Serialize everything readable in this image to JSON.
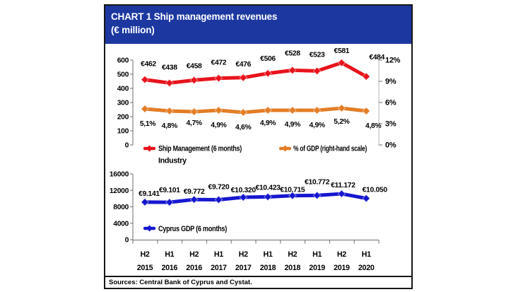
{
  "header": {
    "title_line1": "CHART 1  Ship management revenues",
    "title_line2": "(€ million)"
  },
  "footer": {
    "sources": "Sources: Central Bank of Cyprus and Cystat."
  },
  "colors": {
    "header_bg": "#1c38a0",
    "revenue_red": "#e8131c",
    "gdp_pct_orange": "#e37d26",
    "gdp_blue": "#1617cf",
    "axis_dark": "#6e6e6e",
    "axis_light": "#b5b5b5",
    "text": "#000000"
  },
  "chart_data": [
    {
      "type": "line",
      "title": "Ship management revenues (€ million)",
      "legend_position": "bottom",
      "grid": false,
      "left_axis": {
        "range": [
          0,
          600
        ],
        "step": 100,
        "tick_labels": [
          "600",
          "500",
          "400",
          "300",
          "200",
          "100",
          "0"
        ]
      },
      "right_axis": {
        "range": [
          0,
          12
        ],
        "step": 3,
        "tick_labels": [
          "12%",
          "9%",
          "6%",
          "3%",
          "0%"
        ]
      },
      "series": [
        {
          "name": "Ship Management (6 months) Industry",
          "axis": "left",
          "color_key": "revenue_red",
          "values": [
            462,
            438,
            458,
            472,
            476,
            506,
            528,
            523,
            581,
            484
          ],
          "point_labels": [
            "€462",
            "€438",
            "€458",
            "€472",
            "€476",
            "€506",
            "€528",
            "€523",
            "€581",
            "€484"
          ],
          "label_position": "above"
        },
        {
          "name": "% of GDP (right-hand scale)",
          "axis": "right",
          "color_key": "gdp_pct_orange",
          "values": [
            5.1,
            4.8,
            4.7,
            4.9,
            4.6,
            4.9,
            4.9,
            4.9,
            5.2,
            4.8
          ],
          "point_labels": [
            "5,1%",
            "4,8%",
            "4,7%",
            "4,9%",
            "4,6%",
            "4,9%",
            "4,9%",
            "4,9%",
            "5,2%",
            "4,8%"
          ],
          "label_position": "below"
        }
      ],
      "legend": [
        {
          "text_line1": "Ship Management (6 months)",
          "text_line2": "Industry",
          "color_key": "revenue_red"
        },
        {
          "text_line1": "% of GDP (right-hand scale)",
          "text_line2": "",
          "color_key": "gdp_pct_orange"
        }
      ]
    },
    {
      "type": "line",
      "title": "Cyprus GDP (6 months)",
      "legend_position": "inside-left",
      "grid": false,
      "left_axis": {
        "range": [
          0,
          16000
        ],
        "step": 4000,
        "tick_labels": [
          "16000",
          "12000",
          "8000",
          "4000",
          "0"
        ]
      },
      "series": [
        {
          "name": "Cyprus GDP (6 months)",
          "axis": "left",
          "color_key": "gdp_blue",
          "values": [
            9141,
            9101,
            9772,
            9720,
            10320,
            10423,
            10715,
            10772,
            11172,
            10050
          ],
          "point_labels": [
            "€9.141",
            "€9.101",
            "€9.772",
            "€9.720",
            "€10.320",
            "€10.423",
            "€10.715",
            "€10.772",
            "€11.172",
            "€10.050"
          ],
          "label_position": "above"
        }
      ],
      "legend": [
        {
          "text_line1": "Cyprus GDP (6 months)",
          "text_line2": "",
          "color_key": "gdp_blue"
        }
      ],
      "categories": [
        [
          "H2",
          "2015"
        ],
        [
          "H1",
          "2016"
        ],
        [
          "H2",
          "2016"
        ],
        [
          "H1",
          "2017"
        ],
        [
          "H2",
          "2017"
        ],
        [
          "H1",
          "2018"
        ],
        [
          "H2",
          "2018"
        ],
        [
          "H1",
          "2019"
        ],
        [
          "H2",
          "2019"
        ],
        [
          "H1",
          "2020"
        ]
      ]
    }
  ]
}
